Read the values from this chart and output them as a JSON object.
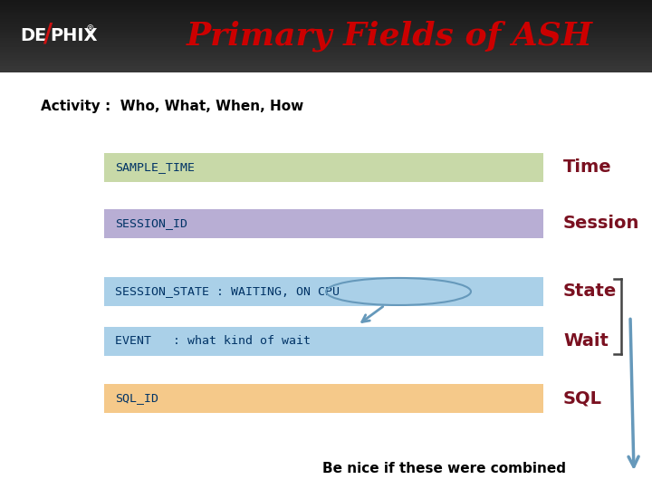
{
  "title": "Primary Fields of ASH",
  "subtitle": "Activity :  Who, What, When, How",
  "header_bg": "#1a1a1a",
  "title_color": "#cc0000",
  "subtitle_color": "#000000",
  "rows": [
    {
      "label": "SAMPLE_TIME",
      "bg_color": "#c8d9a8",
      "tag": "Time",
      "tag_color": "#7a1020"
    },
    {
      "label": "SESSION_ID",
      "bg_color": "#b8aed4",
      "tag": "Session",
      "tag_color": "#7a1020"
    },
    {
      "label": "SESSION_STATE : WAITING, ON CPU",
      "bg_color": "#aad0e8",
      "tag": "State",
      "tag_color": "#7a1020"
    },
    {
      "label": "EVENT   : what kind of wait",
      "bg_color": "#aad0e8",
      "tag": "Wait",
      "tag_color": "#7a1020"
    },
    {
      "label": "SQL_ID",
      "bg_color": "#f5c98a",
      "tag": "SQL",
      "tag_color": "#7a1020"
    }
  ],
  "bottom_text": "Be nice if these were combined",
  "bottom_text_color": "#000000",
  "arrow_color": "#6699bb",
  "ellipse_color": "#6699bb",
  "bracket_color": "#444444"
}
